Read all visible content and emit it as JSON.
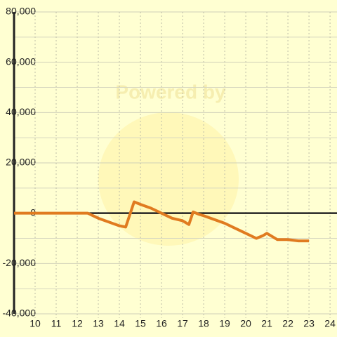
{
  "chart_data": {
    "type": "line",
    "watermark": "Powered by",
    "x": [
      9,
      12.5,
      13,
      13.5,
      14,
      14.3,
      14.7,
      15,
      15.5,
      16,
      16.5,
      17,
      17.3,
      17.5,
      17.8,
      18,
      18.5,
      19,
      19.5,
      20,
      20.5,
      20.8,
      21,
      21.3,
      21.5,
      22,
      22.5,
      23
    ],
    "series": [
      {
        "color": "#e07b20",
        "values": [
          0,
          0,
          -2000,
          -3500,
          -5000,
          -5500,
          4500,
          3500,
          2000,
          0,
          -2000,
          -3000,
          -4500,
          500,
          -500,
          -1000,
          -2500,
          -4000,
          -6000,
          -8000,
          -10000,
          -9000,
          -8000,
          -9500,
          -10500,
          -10500,
          -11000,
          -11000
        ]
      }
    ],
    "xlim": [
      9,
      24.33
    ],
    "ylim": [
      -40000,
      80000
    ],
    "xticks": [
      10,
      11,
      12,
      13,
      14,
      15,
      16,
      17,
      18,
      19,
      20,
      21,
      22,
      23,
      24
    ],
    "yticks": [
      {
        "value": 80000,
        "label": "80,000"
      },
      {
        "value": 60000,
        "label": "60,000"
      },
      {
        "value": 40000,
        "label": "40,000"
      },
      {
        "value": 20000,
        "label": "20,000"
      },
      0,
      {
        "value": -20000,
        "label": "-20,000"
      },
      {
        "value": -40000,
        "label": "-40,000"
      }
    ],
    "minor_yticks": [
      70000,
      50000,
      30000,
      10000,
      -10000,
      -30000
    ],
    "grid": true
  }
}
